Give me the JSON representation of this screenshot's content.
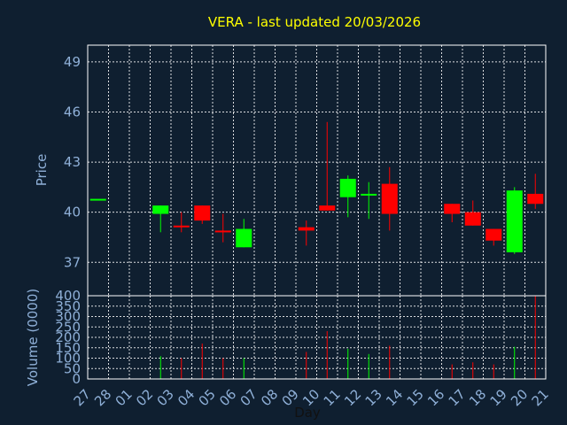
{
  "chart_data": {
    "type": "candlestick",
    "title": "VERA - last updated 20/03/2026",
    "xlabel": "Day",
    "price_axis": {
      "ylabel": "Price",
      "ylim": [
        35,
        50
      ],
      "ticks": [
        "37",
        "40",
        "43",
        "46",
        "49"
      ]
    },
    "volume_axis": {
      "ylabel": "Volume (0000)",
      "ylim": [
        0,
        400
      ],
      "ticks": [
        "0",
        "50",
        "100",
        "150",
        "200",
        "250",
        "300",
        "350",
        "400"
      ]
    },
    "grid": true,
    "colors": {
      "background": "#0f1f30",
      "up": "#00ff00",
      "down": "#ff0000",
      "title": "#ffff00",
      "axis_text": "#8fb0d8",
      "grid": "#ffffff"
    },
    "x_ticks": [
      "27",
      "28",
      "01",
      "02",
      "03",
      "04",
      "05",
      "06",
      "07",
      "08",
      "09",
      "10",
      "11",
      "12",
      "13",
      "14",
      "15",
      "16",
      "17",
      "18",
      "19",
      "20",
      "21"
    ],
    "candles": [
      {
        "day": "27",
        "open": 40.8,
        "high": 40.8,
        "low": 40.8,
        "close": 40.8,
        "volume": 0
      },
      {
        "day": "02",
        "open": 39.9,
        "high": 40.4,
        "low": 38.8,
        "close": 40.4,
        "volume": 110
      },
      {
        "day": "03",
        "open": 39.2,
        "high": 40.0,
        "low": 38.8,
        "close": 39.1,
        "volume": 100
      },
      {
        "day": "04",
        "open": 40.4,
        "high": 40.4,
        "low": 39.3,
        "close": 39.5,
        "volume": 170
      },
      {
        "day": "05",
        "open": 38.9,
        "high": 39.9,
        "low": 38.2,
        "close": 38.8,
        "volume": 100
      },
      {
        "day": "06",
        "open": 37.9,
        "high": 39.6,
        "low": 37.9,
        "close": 39.0,
        "volume": 100
      },
      {
        "day": "09",
        "open": 39.1,
        "high": 39.5,
        "low": 38.0,
        "close": 38.9,
        "volume": 130
      },
      {
        "day": "10",
        "open": 40.4,
        "high": 45.4,
        "low": 40.1,
        "close": 40.1,
        "volume": 230
      },
      {
        "day": "11",
        "open": 40.9,
        "high": 42.2,
        "low": 39.7,
        "close": 42.0,
        "volume": 145
      },
      {
        "day": "12",
        "open": 41.0,
        "high": 41.8,
        "low": 39.6,
        "close": 41.1,
        "volume": 120
      },
      {
        "day": "13",
        "open": 41.7,
        "high": 42.7,
        "low": 38.9,
        "close": 39.9,
        "volume": 160
      },
      {
        "day": "16",
        "open": 40.5,
        "high": 40.5,
        "low": 39.4,
        "close": 39.9,
        "volume": 70
      },
      {
        "day": "17",
        "open": 40.0,
        "high": 40.7,
        "low": 39.2,
        "close": 39.2,
        "volume": 80
      },
      {
        "day": "18",
        "open": 39.0,
        "high": 39.0,
        "low": 38.0,
        "close": 38.3,
        "volume": 70
      },
      {
        "day": "19",
        "open": 37.6,
        "high": 41.5,
        "low": 37.5,
        "close": 41.3,
        "volume": 155
      },
      {
        "day": "20",
        "open": 41.1,
        "high": 42.3,
        "low": 40.2,
        "close": 40.5,
        "volume": 400
      }
    ]
  }
}
